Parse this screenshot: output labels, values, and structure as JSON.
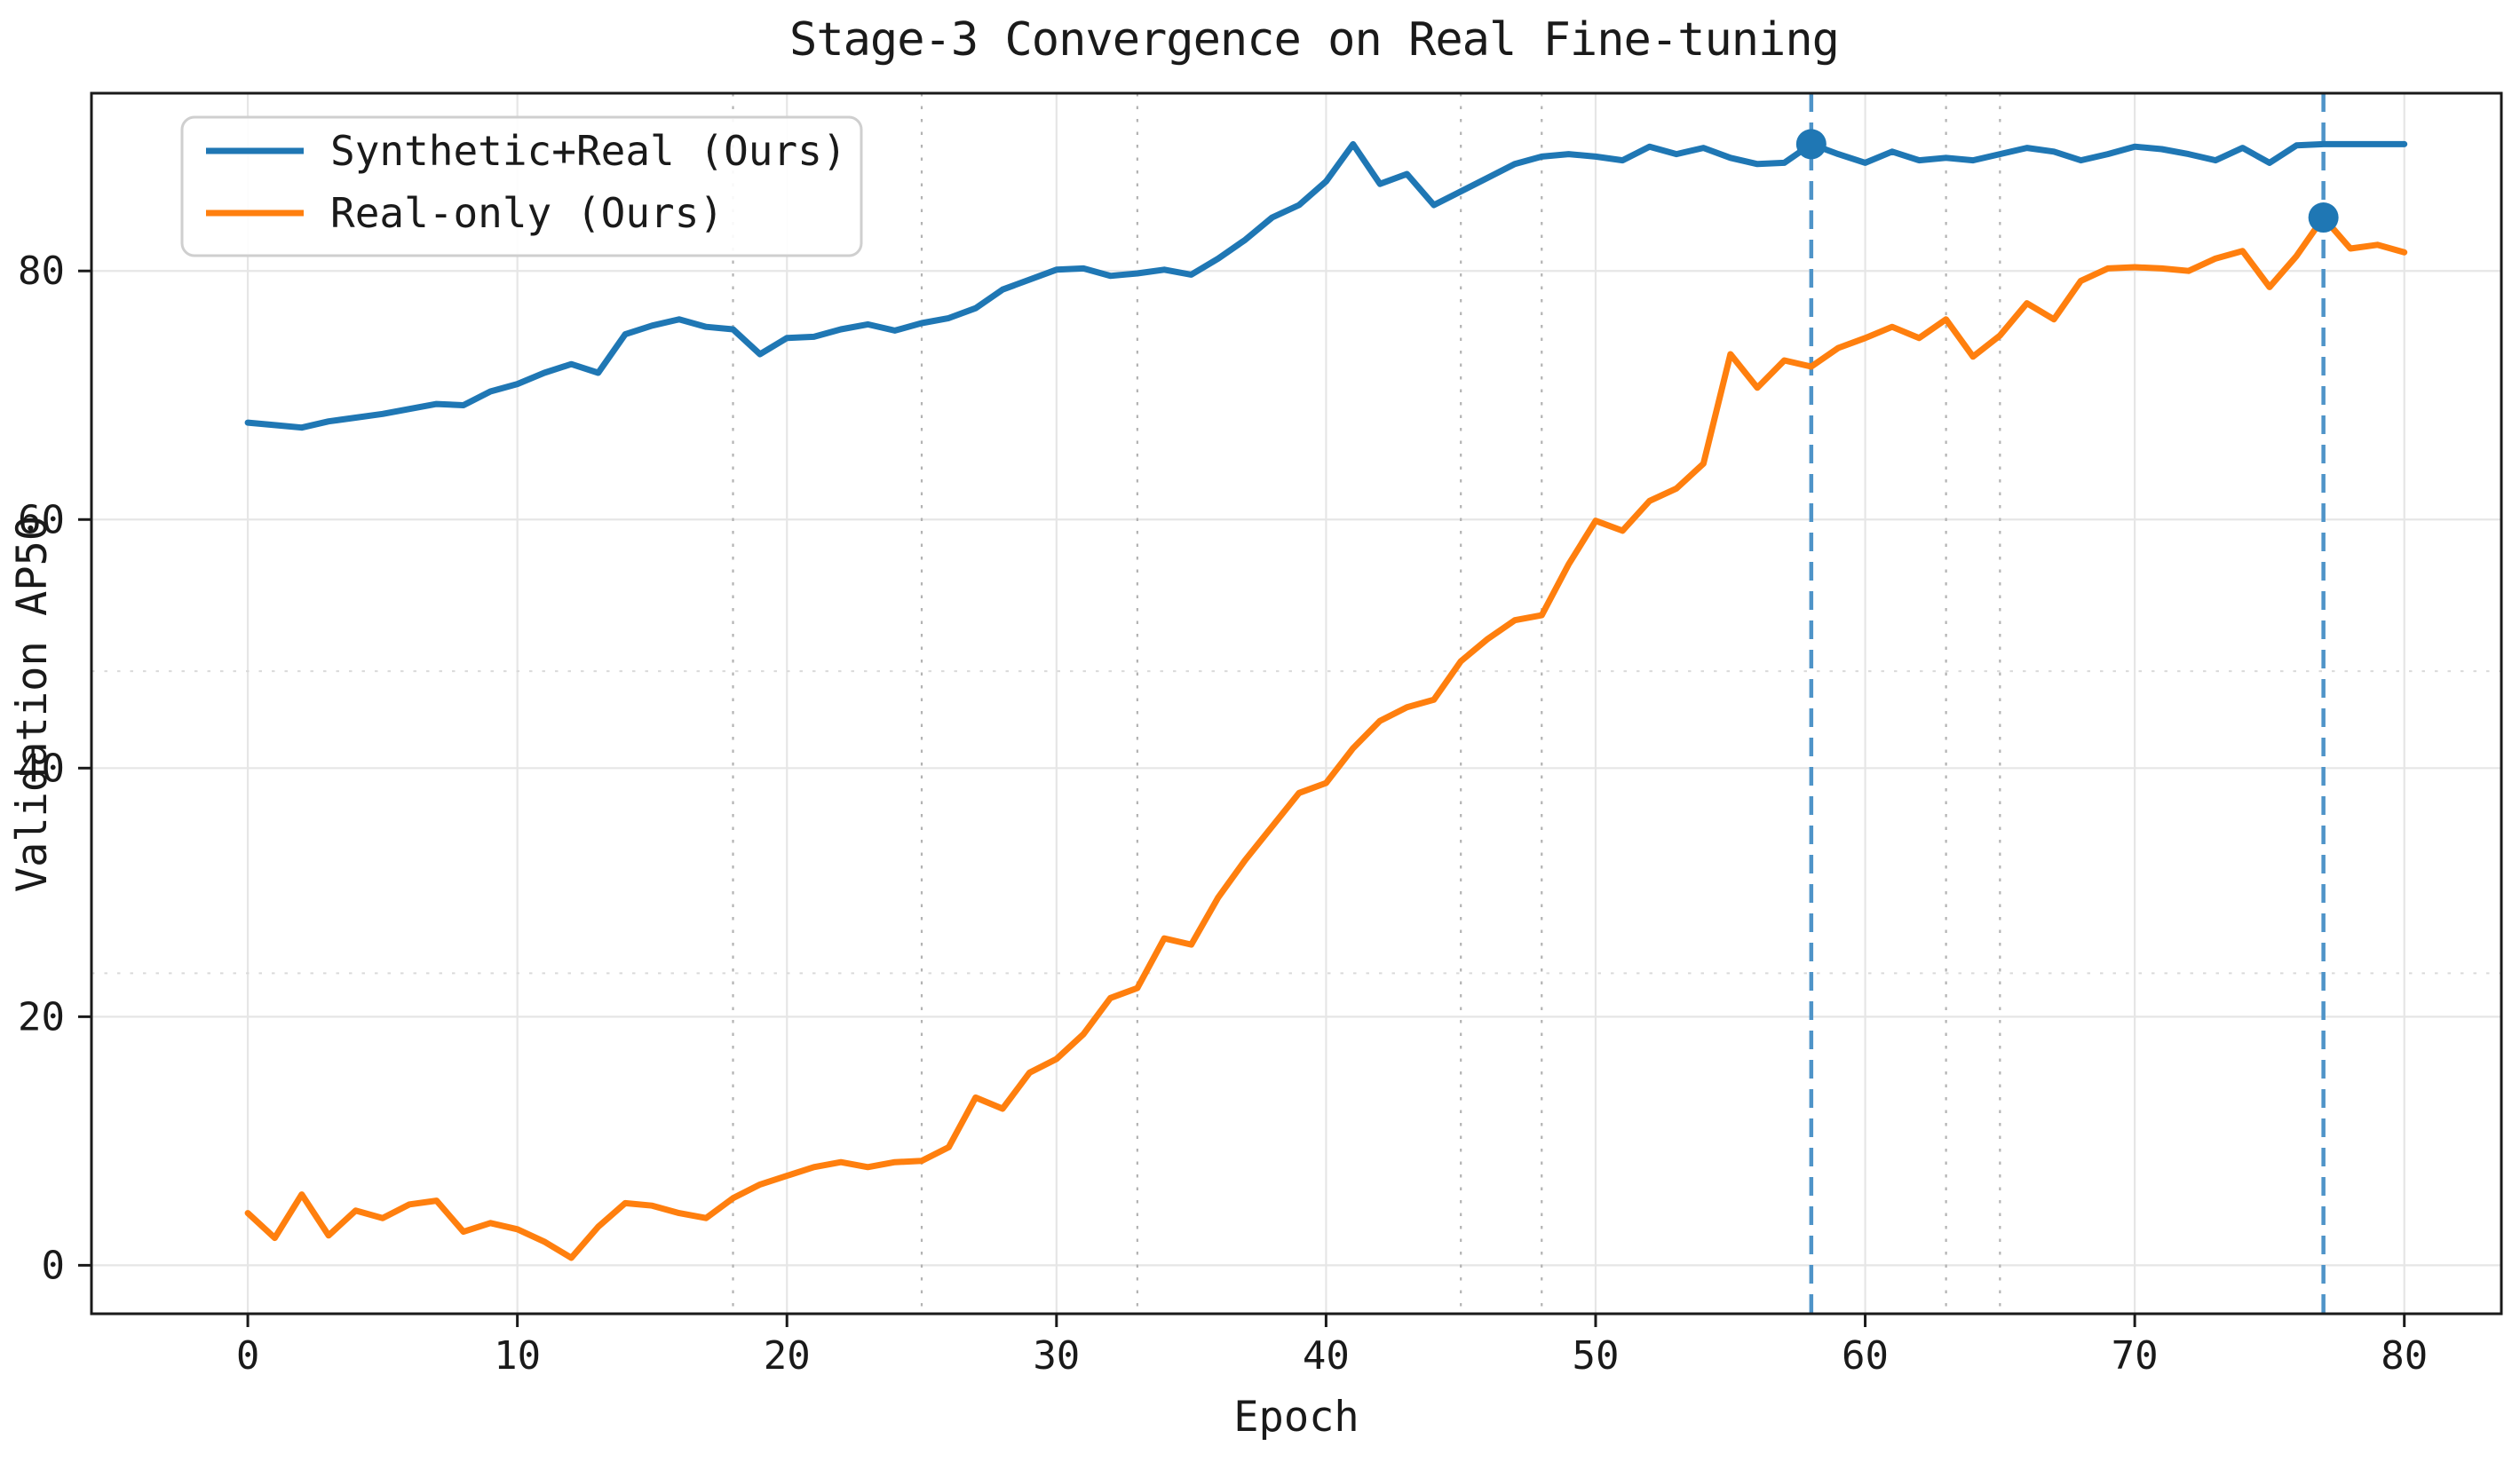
{
  "chart_data": {
    "type": "line",
    "title": "Stage-3 Convergence on Real Fine-tuning",
    "xlabel": "Epoch",
    "ylabel": "Validation AP50",
    "xlim": [
      -5.8,
      83.6
    ],
    "ylim": [
      -3.9,
      94.3
    ],
    "x_ticks": [
      0,
      10,
      20,
      30,
      40,
      50,
      60,
      70,
      80
    ],
    "y_ticks": [
      0,
      20,
      40,
      60,
      80
    ],
    "grid": {
      "major": "on",
      "major_color": "#e6e6e6",
      "aux_dashed_x_epochs": [
        18,
        25,
        33,
        45,
        48,
        63,
        65
      ],
      "aux_dashed_y_values": [
        23.5,
        47.8
      ],
      "aux_dashed_color": "#b3b3b3",
      "aux_dashed_y_color": "#dadada"
    },
    "x_range": {
      "start": 0,
      "end": 80,
      "step": 1
    },
    "series": [
      {
        "name": "Synthetic+Real (Ours)",
        "color": "#1f77b4",
        "values": [
          67.8,
          67.6,
          67.4,
          67.9,
          68.2,
          68.5,
          68.9,
          69.3,
          69.2,
          70.3,
          70.9,
          71.8,
          72.5,
          71.8,
          74.9,
          75.6,
          76.1,
          75.5,
          75.3,
          73.3,
          74.6,
          74.7,
          75.3,
          75.7,
          75.2,
          75.8,
          76.2,
          77.0,
          78.5,
          79.3,
          80.1,
          80.2,
          79.6,
          79.8,
          80.1,
          79.7,
          81.0,
          82.5,
          84.3,
          85.3,
          87.2,
          90.2,
          87.0,
          87.8,
          85.3,
          86.4,
          87.5,
          88.6,
          89.2,
          89.4,
          89.2,
          88.9,
          90.0,
          89.4,
          89.9,
          89.1,
          88.6,
          88.7,
          90.2,
          89.4,
          88.7,
          89.6,
          88.9,
          89.1,
          88.9,
          89.4,
          89.9,
          89.6,
          88.9,
          89.4,
          90.0,
          89.8,
          89.4,
          88.9,
          89.9,
          88.7,
          90.1,
          90.2,
          90.2,
          90.2,
          90.2
        ]
      },
      {
        "name": "Real-only (Ours)",
        "color": "#ff7f0e",
        "values": [
          4.2,
          2.2,
          5.7,
          2.4,
          4.4,
          3.8,
          4.9,
          5.2,
          2.7,
          3.4,
          2.9,
          1.9,
          0.6,
          3.1,
          5.0,
          4.8,
          4.2,
          3.8,
          5.4,
          6.5,
          7.2,
          7.9,
          8.3,
          7.9,
          8.3,
          8.4,
          9.5,
          13.5,
          12.6,
          15.5,
          16.6,
          18.6,
          21.5,
          22.3,
          26.3,
          25.8,
          29.6,
          32.6,
          35.3,
          38.0,
          38.8,
          41.6,
          43.8,
          44.9,
          45.5,
          48.6,
          50.4,
          51.9,
          52.3,
          56.4,
          59.9,
          59.1,
          61.5,
          62.5,
          64.5,
          73.3,
          70.6,
          72.8,
          72.3,
          73.8,
          74.6,
          75.5,
          74.6,
          76.1,
          73.1,
          74.8,
          77.4,
          76.1,
          79.2,
          80.2,
          80.3,
          80.2,
          80.0,
          81.0,
          81.6,
          78.7,
          81.2,
          84.3,
          81.8,
          82.1,
          81.5
        ]
      }
    ],
    "annotations": {
      "best_epoch_vlines": [
        {
          "x": 58,
          "color": "#4f94c8",
          "style": "dashed"
        },
        {
          "x": 77,
          "color": "#4f94c8",
          "style": "dashed"
        }
      ],
      "best_epoch_markers": [
        {
          "epoch": 58,
          "value": 90.2,
          "series": "Synthetic+Real (Ours)",
          "color": "#1f77b4"
        },
        {
          "epoch": 77,
          "value": 84.3,
          "series": "Real-only (Ours)",
          "color": "#1f77b4"
        }
      ]
    },
    "legend_position": "upper-left"
  }
}
